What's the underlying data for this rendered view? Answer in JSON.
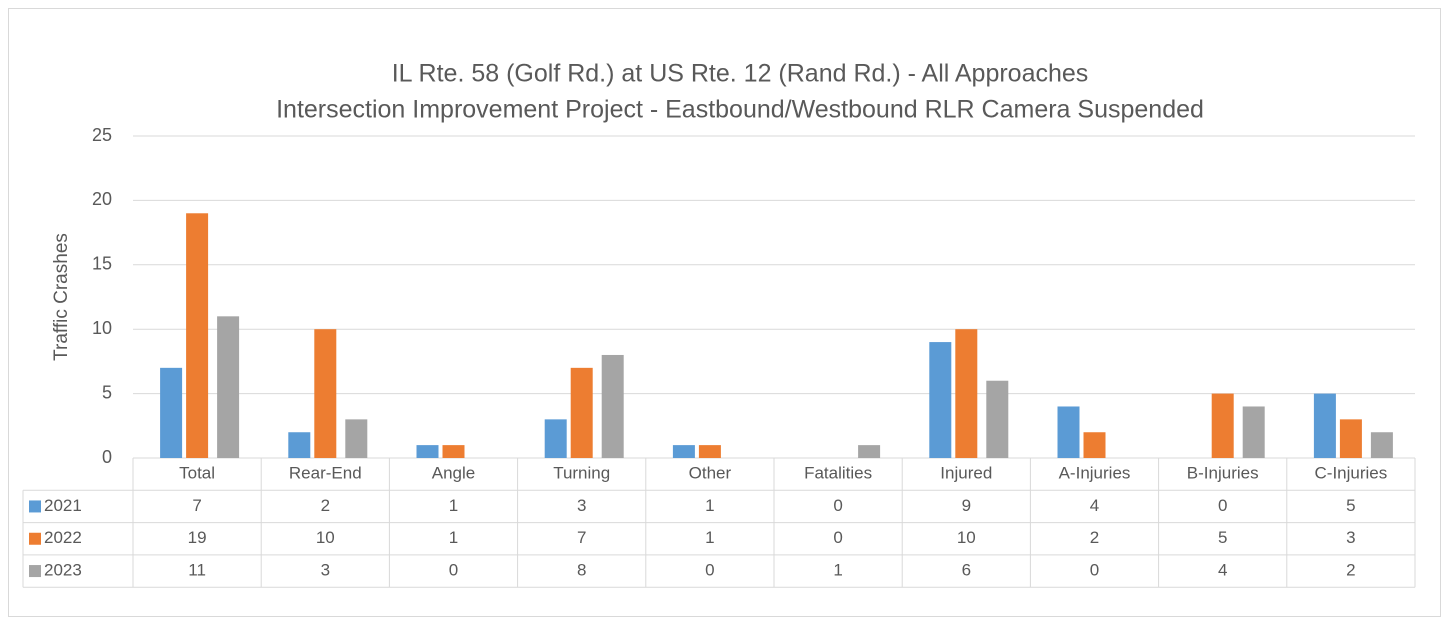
{
  "chart_data": {
    "type": "bar",
    "title": "IL Rte. 58 (Golf Rd.) at US Rte. 12 (Rand Rd.) - All Approaches",
    "subtitle": "Intersection Improvement Project - Eastbound/Westbound RLR Camera Suspended",
    "y_label": "Traffic Crashes",
    "categories": [
      "Total",
      "Rear-End",
      "Angle",
      "Turning",
      "Other",
      "Fatalities",
      "Injured",
      "A-Injuries",
      "B-Injuries",
      "C-Injuries"
    ],
    "series": [
      {
        "name": "2021",
        "color": "#5b9bd5",
        "values": [
          7,
          2,
          1,
          3,
          1,
          0,
          9,
          4,
          0,
          5
        ]
      },
      {
        "name": "2022",
        "color": "#ed7d31",
        "values": [
          19,
          10,
          1,
          7,
          1,
          0,
          10,
          2,
          5,
          3
        ]
      },
      {
        "name": "2023",
        "color": "#a5a5a5",
        "values": [
          11,
          3,
          0,
          8,
          0,
          1,
          6,
          0,
          4,
          2
        ]
      }
    ],
    "ylim": [
      0,
      25
    ],
    "yticks": [
      0,
      5,
      10,
      15,
      20,
      25
    ],
    "grid": true,
    "data_table": true
  }
}
